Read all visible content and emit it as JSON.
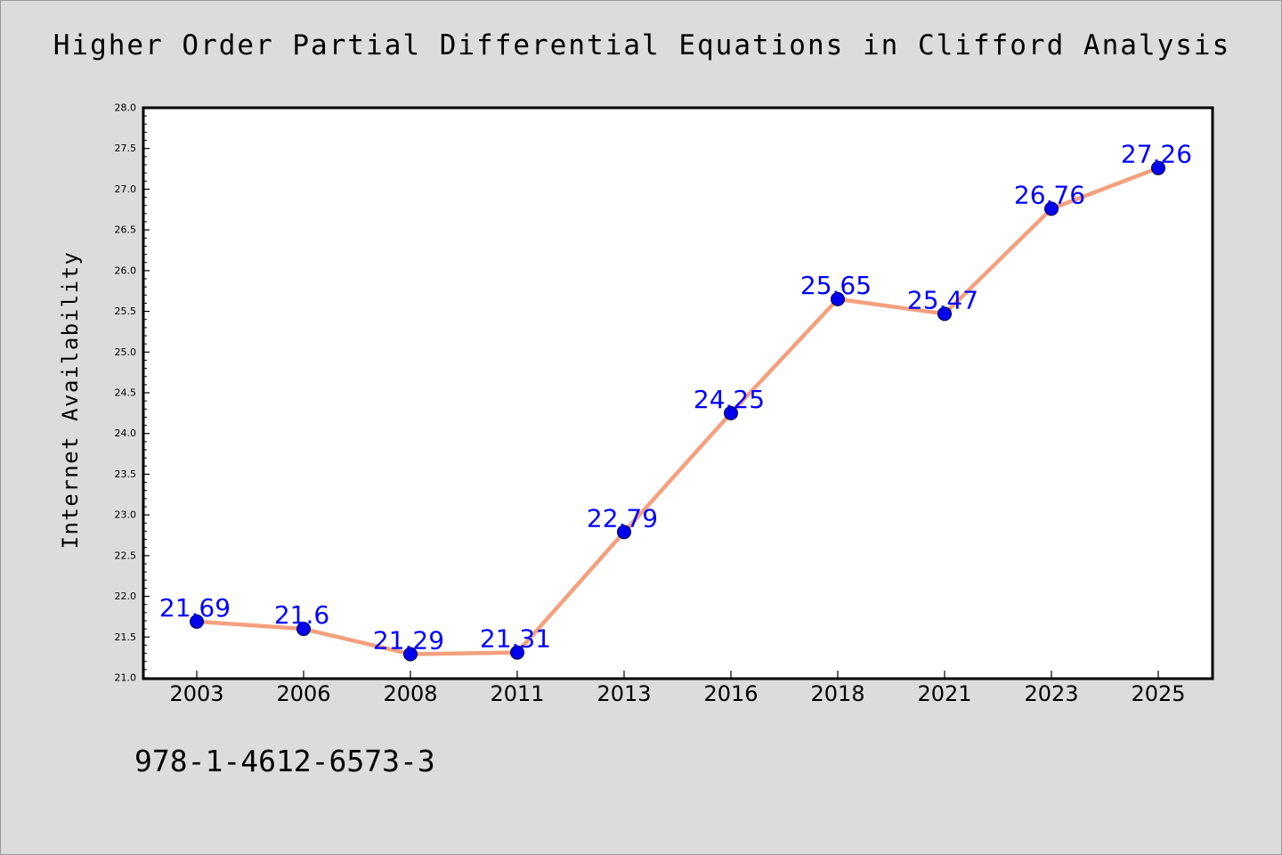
{
  "chart_data": {
    "type": "line",
    "title": "Higher Order Partial Differential Equations in Clifford Analysis",
    "xlabel": "",
    "ylabel": "Internet Availability",
    "categories": [
      "2003",
      "2006",
      "2008",
      "2011",
      "2013",
      "2016",
      "2018",
      "2021",
      "2023",
      "2025"
    ],
    "series": [
      {
        "values": [
          21.69,
          21.6,
          21.29,
          21.31,
          22.79,
          24.25,
          25.65,
          25.47,
          26.76,
          27.26
        ],
        "data_labels": [
          "21.69",
          "21.6",
          "21.29",
          "21.31",
          "22.79",
          "24.25",
          "25.65",
          "25.47",
          "26.76",
          "27.26"
        ]
      }
    ],
    "ylim": [
      21.0,
      28.0
    ],
    "yticks": [
      "21.0",
      "21.5",
      "22.0",
      "22.5",
      "23.0",
      "23.5",
      "24.0",
      "24.5",
      "25.0",
      "25.5",
      "26.0",
      "26.5",
      "27.0",
      "27.5",
      "28.0"
    ],
    "grid": false,
    "legend": "none",
    "colors": {
      "line": "#f4a07e",
      "marker": "#0000ee",
      "label": "#0000ff",
      "background": "#dcdcdc"
    }
  },
  "footer": {
    "isbn": "978-1-4612-6573-3"
  }
}
